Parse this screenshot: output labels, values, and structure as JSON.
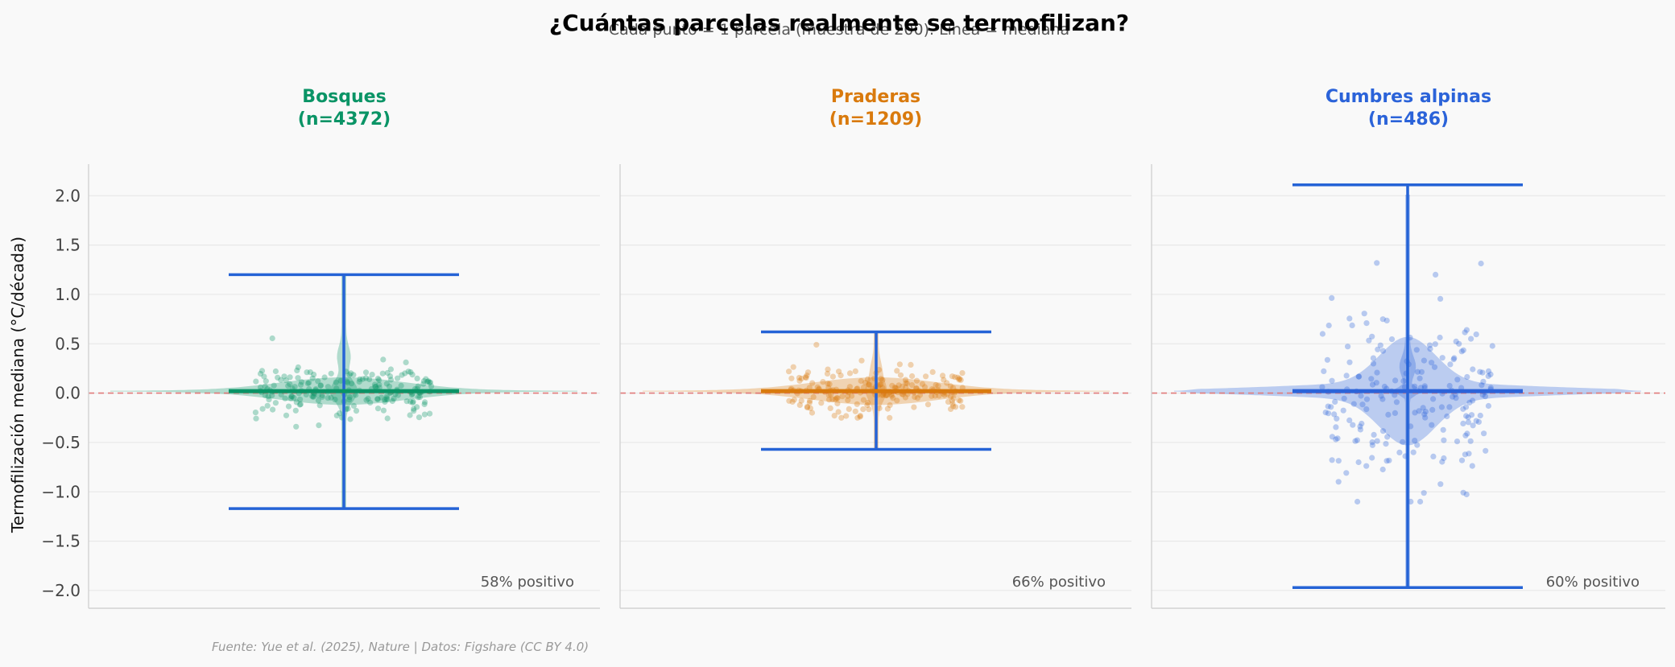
{
  "figure": {
    "title": "¿Cuántas parcelas realmente se termofilizan?",
    "subtitle": "Cada punto = 1 parcela (muestra de 200). Línea = mediana",
    "source": "Fuente: Yue et al. (2025), Nature | Datos: Figshare (CC BY 4.0)"
  },
  "colors": {
    "bosques": "#0a9466",
    "praderas": "#d97a0d",
    "cumbres": "#2b63d9",
    "whisker": "#2563d6",
    "zero_line": "#e07a7a",
    "grid": "#e6e6e6",
    "tick_text": "#444444",
    "annotation": "#555555",
    "source_text": "#999999"
  },
  "chart_data": {
    "type": "violin",
    "ylabel": "Termofilización mediana (°C/década)",
    "ylim": [
      -2.18,
      2.32
    ],
    "yticks": [
      2.0,
      1.5,
      1.0,
      0.5,
      0.0,
      -0.5,
      -1.0,
      -1.5,
      -2.0
    ],
    "ytick_labels": [
      "2.0",
      "1.5",
      "1.0",
      "0.5",
      "0.0",
      "−0.5",
      "−1.0",
      "−1.5",
      "−2.0"
    ],
    "reference_line": 0.0,
    "grid": true,
    "panels": [
      {
        "key": "bosques",
        "name": "Bosques",
        "n_label": "(n=4372)",
        "n": 4372,
        "median": 0.02,
        "whisker_min": -1.17,
        "whisker_max": 1.2,
        "percent_positive_label": "58% positivo",
        "sample_min": -0.41,
        "sample_max": 0.76
      },
      {
        "key": "praderas",
        "name": "Praderas",
        "n_label": "(n=1209)",
        "n": 1209,
        "median": 0.02,
        "whisker_min": -0.57,
        "whisker_max": 0.62,
        "percent_positive_label": "66% positivo",
        "sample_min": -0.25,
        "sample_max": 0.49
      },
      {
        "key": "cumbres",
        "name": "Cumbres alpinas",
        "n_label": "(n=486)",
        "n": 486,
        "median": 0.02,
        "whisker_min": -1.97,
        "whisker_max": 2.11,
        "percent_positive_label": "60% positivo",
        "sample_min": -1.1,
        "sample_max": 1.97
      }
    ]
  }
}
